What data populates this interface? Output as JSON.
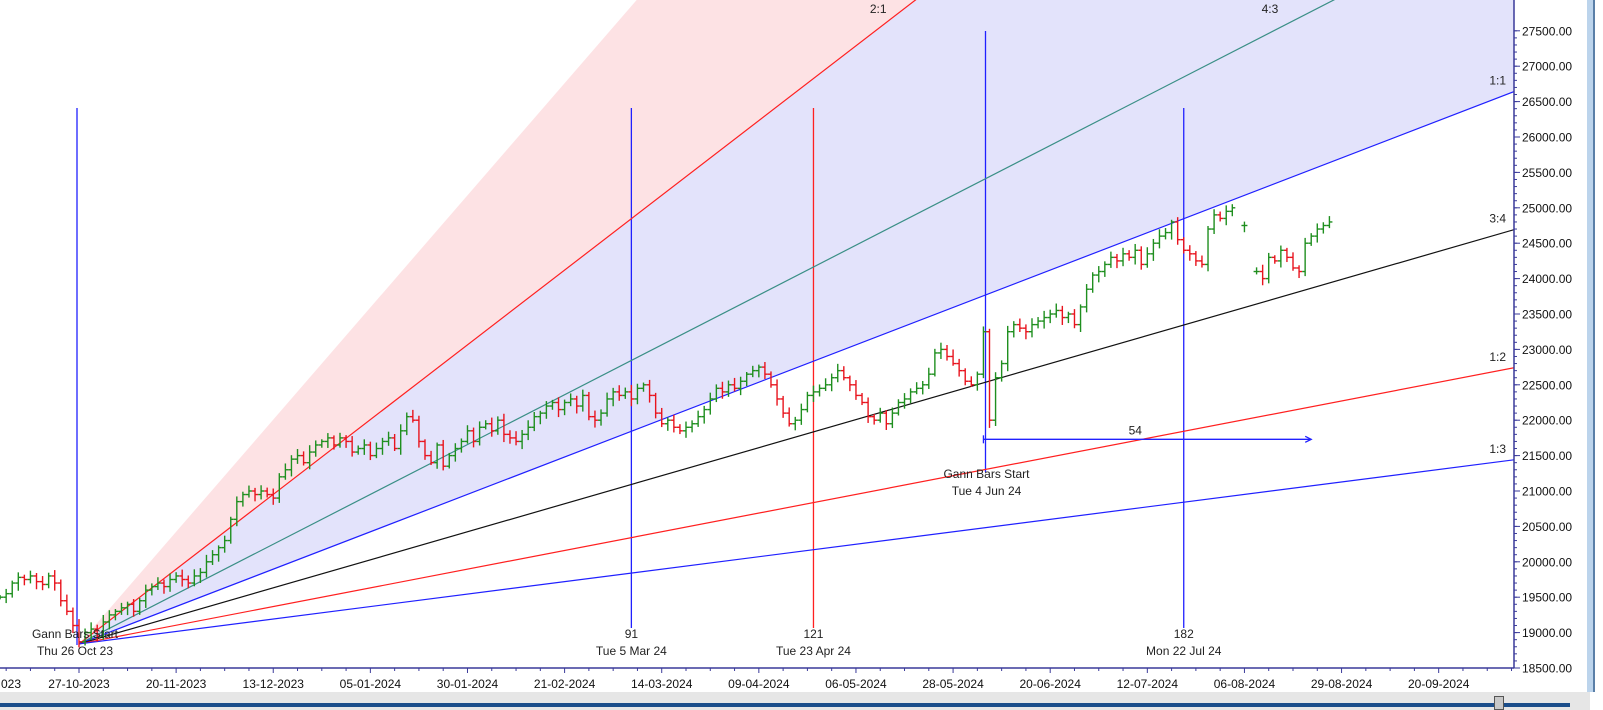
{
  "chart_data": {
    "type": "ohlc",
    "title": "",
    "xlabel": "",
    "ylabel": "",
    "ylim": [
      18500,
      27500
    ],
    "y_ticks": [
      "18500.00",
      "19000.00",
      "19500.00",
      "20000.00",
      "20500.00",
      "21000.00",
      "21500.00",
      "22000.00",
      "22500.00",
      "23000.00",
      "23500.00",
      "24000.00",
      "24500.00",
      "25000.00",
      "25500.00",
      "26000.00",
      "26500.00",
      "27000.00",
      "27500.00"
    ],
    "x_ticks": [
      "27-10-2023",
      "20-11-2023",
      "13-12-2023",
      "05-01-2024",
      "30-01-2024",
      "21-02-2024",
      "14-03-2024",
      "09-04-2024",
      "06-05-2024",
      "28-05-2024",
      "20-06-2024",
      "12-07-2024",
      "06-08-2024",
      "29-08-2024",
      "20-09-2024"
    ],
    "x_tick_clipped_left": "023",
    "bars_per_x_tick": 16,
    "first_bar_offset": -13,
    "closes": [
      19500,
      19550,
      19700,
      19780,
      19750,
      19800,
      19720,
      19680,
      19800,
      19700,
      19450,
      19300,
      19100,
      18870,
      19000,
      19050,
      18950,
      19150,
      19250,
      19300,
      19350,
      19400,
      19300,
      19450,
      19600,
      19650,
      19700,
      19650,
      19750,
      19800,
      19750,
      19700,
      19800,
      19850,
      20000,
      20100,
      20200,
      20300,
      20600,
      20850,
      20950,
      21000,
      20950,
      21000,
      20950,
      20900,
      21200,
      21300,
      21450,
      21500,
      21400,
      21550,
      21650,
      21700,
      21750,
      21650,
      21750,
      21700,
      21550,
      21600,
      21650,
      21500,
      21600,
      21700,
      21750,
      21600,
      21850,
      22050,
      22000,
      21700,
      21500,
      21400,
      21650,
      21350,
      21500,
      21600,
      21700,
      21850,
      21700,
      21900,
      21950,
      21850,
      22000,
      21800,
      21750,
      21700,
      21800,
      21900,
      22050,
      22100,
      22200,
      22250,
      22150,
      22250,
      22300,
      22200,
      22350,
      22050,
      22000,
      22100,
      22300,
      22400,
      22350,
      22400,
      22300,
      22450,
      22500,
      22350,
      22100,
      21950,
      22000,
      21900,
      21850,
      21900,
      21950,
      22050,
      22150,
      22300,
      22450,
      22400,
      22500,
      22450,
      22550,
      22650,
      22700,
      22750,
      22650,
      22500,
      22300,
      22100,
      21950,
      22000,
      22150,
      22350,
      22400,
      22450,
      22500,
      22600,
      22700,
      22600,
      22500,
      22350,
      22250,
      22050,
      22000,
      22100,
      21950,
      22100,
      22250,
      22300,
      22400,
      22450,
      22500,
      22650,
      22950,
      23000,
      22900,
      22800,
      22700,
      22550,
      22500,
      22650,
      23250,
      22000,
      22600,
      22800,
      23250,
      23350,
      23300,
      23250,
      23350,
      23400,
      23450,
      23500,
      23550,
      23450,
      23500,
      23350,
      23600,
      23850,
      24050,
      24100,
      24200,
      24300,
      24250,
      24350,
      24300,
      24400,
      24200,
      24350,
      24500,
      24600,
      24650,
      24800,
      24550,
      24400,
      24350,
      24250,
      24200,
      24700,
      24900,
      24850,
      24950,
      25000,
      null,
      24750,
      null,
      24100,
      24000,
      24300,
      24250,
      24400,
      24300,
      24150,
      24100,
      24500,
      24600,
      24700,
      24750,
      24800
    ],
    "colors": {
      "up": "#1f8f1f",
      "down": "#e8141e",
      "axis": "#3a3a9a"
    },
    "gann_fan": {
      "start_label": "Gann Bars Start",
      "start_date": "Thu 26 Oct 23",
      "origin_price": 18840,
      "unit_points_per_bar": 33,
      "lines": [
        {
          "label": "2:1",
          "ratio": 2,
          "color": "#ff2020"
        },
        {
          "label": "4:3",
          "ratio": 1.3333,
          "color": "#3a8f86"
        },
        {
          "label": "1:1",
          "ratio": 1,
          "color": "#2020ff"
        },
        {
          "label": "3:4",
          "ratio": 0.75,
          "color": "#111111"
        },
        {
          "label": "1:2",
          "ratio": 0.5,
          "color": "#ff2020"
        },
        {
          "label": "1:3",
          "ratio": 0.3333,
          "color": "#2020ff"
        }
      ],
      "shading": [
        {
          "from_ratio": 3,
          "to_ratio": 2,
          "color": "#fde2e4"
        },
        {
          "from_ratio": 2,
          "to_ratio": 1,
          "color": "#e3e3fb"
        }
      ]
    },
    "bar_markers": [
      {
        "bar": 91,
        "label": "91",
        "date": "Tue 5 Mar 24",
        "color": "#2020ff"
      },
      {
        "bar": 121,
        "label": "121",
        "date": "Tue 23 Apr 24",
        "color": "#ff2020"
      },
      {
        "bar": 182,
        "label": "182",
        "date": "Mon 22 Jul 24",
        "color": "#2020ff"
      }
    ],
    "second_start": {
      "bar": 150,
      "label": "Gann Bars Start",
      "date": "Tue 4 Jun 24",
      "color": "#2020ff"
    },
    "bar_count_arrow": {
      "from_bar": 149,
      "to_bar": 203,
      "price": 21730,
      "label": "54",
      "color": "#2020ff"
    }
  }
}
